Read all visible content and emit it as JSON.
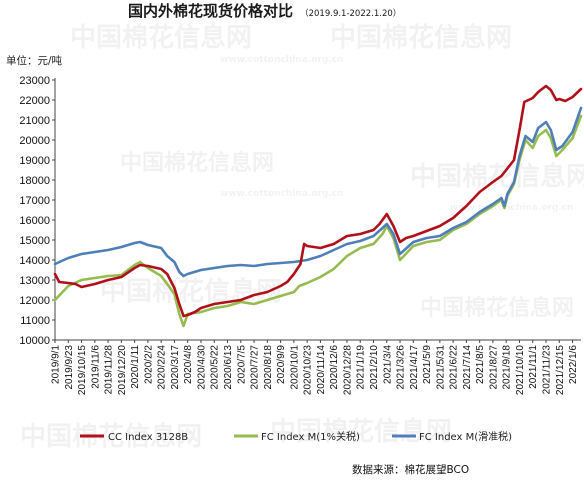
{
  "title": "国内外棉花现货价格对比",
  "subtitle": "（2019.9.1-2022.1.20）",
  "unit_label": "单位：元/吨",
  "source_text": "数据来源：棉花展望BCO",
  "watermark": "中国棉花信息网",
  "watermark_url": "www.cottonchina.org.cn",
  "colors": {
    "cc": "#b01019",
    "fc1": "#96bb50",
    "fcs": "#4f7fb8"
  },
  "chart_data": {
    "type": "line",
    "ylim": [
      10000,
      23000
    ],
    "yticks": [
      10000,
      11000,
      12000,
      13000,
      14000,
      15000,
      16000,
      17000,
      18000,
      19000,
      20000,
      21000,
      22000,
      23000
    ],
    "xlabels": [
      "2019/9/1",
      "2019/9/23",
      "2019/10/15",
      "2019/11/6",
      "2019/11/28",
      "2019/12/20",
      "2020/1/11",
      "2020/2/2",
      "2020/2/24",
      "2020/3/17",
      "2020/4/8",
      "2020/4/30",
      "2020/5/22",
      "2020/6/13",
      "2020/7/5",
      "2020/7/27",
      "2020/8/18",
      "2020/9/9",
      "2020/10/1",
      "2020/10/23",
      "2020/11/14",
      "2020/12/6",
      "2020/12/28",
      "2021/1/19",
      "2021/2/10",
      "2021/3/4",
      "2021/3/26",
      "2021/4/17",
      "2021/5/9",
      "2021/5/31",
      "2021/6/22",
      "2021/7/14",
      "2021/8/5",
      "2021/8/27",
      "2021/9/18",
      "2021/10/10",
      "2021/11/1",
      "2021/11/23",
      "2021/12/15",
      "2022/1/6"
    ],
    "x_start": "2019/9/1",
    "x_end": "2022/1/20",
    "series": [
      {
        "name": "CC Index 3128B",
        "points": [
          [
            "2019/9/1",
            13300
          ],
          [
            "2019/9/8",
            12900
          ],
          [
            "2019/9/23",
            12850
          ],
          [
            "2019/10/5",
            12800
          ],
          [
            "2019/10/15",
            12650
          ],
          [
            "2019/11/6",
            12800
          ],
          [
            "2019/11/28",
            13000
          ],
          [
            "2019/12/20",
            13150
          ],
          [
            "2020/1/11",
            13600
          ],
          [
            "2020/1/20",
            13750
          ],
          [
            "2020/2/2",
            13700
          ],
          [
            "2020/2/24",
            13550
          ],
          [
            "2020/3/5",
            13300
          ],
          [
            "2020/3/17",
            12600
          ],
          [
            "2020/3/25",
            11800
          ],
          [
            "2020/4/1",
            11200
          ],
          [
            "2020/4/8",
            11250
          ],
          [
            "2020/4/20",
            11400
          ],
          [
            "2020/4/30",
            11600
          ],
          [
            "2020/5/22",
            11800
          ],
          [
            "2020/6/13",
            11900
          ],
          [
            "2020/7/5",
            12000
          ],
          [
            "2020/7/27",
            12250
          ],
          [
            "2020/8/18",
            12400
          ],
          [
            "2020/9/9",
            12700
          ],
          [
            "2020/9/20",
            12900
          ],
          [
            "2020/10/1",
            13300
          ],
          [
            "2020/10/12",
            13800
          ],
          [
            "2020/10/18",
            14800
          ],
          [
            "2020/10/23",
            14700
          ],
          [
            "2020/11/14",
            14600
          ],
          [
            "2020/12/6",
            14800
          ],
          [
            "2020/12/28",
            15200
          ],
          [
            "2021/1/19",
            15300
          ],
          [
            "2021/2/10",
            15500
          ],
          [
            "2021/2/20",
            15800
          ],
          [
            "2021/3/4",
            16300
          ],
          [
            "2021/3/15",
            15700
          ],
          [
            "2021/3/26",
            14900
          ],
          [
            "2021/4/5",
            15100
          ],
          [
            "2021/4/17",
            15200
          ],
          [
            "2021/5/9",
            15450
          ],
          [
            "2021/5/31",
            15700
          ],
          [
            "2021/6/22",
            16100
          ],
          [
            "2021/7/14",
            16700
          ],
          [
            "2021/8/5",
            17400
          ],
          [
            "2021/8/27",
            17900
          ],
          [
            "2021/9/10",
            18200
          ],
          [
            "2021/9/18",
            18500
          ],
          [
            "2021/10/1",
            19000
          ],
          [
            "2021/10/10",
            20500
          ],
          [
            "2021/10/18",
            21900
          ],
          [
            "2021/11/1",
            22100
          ],
          [
            "2021/11/10",
            22400
          ],
          [
            "2021/11/23",
            22700
          ],
          [
            "2021/12/1",
            22500
          ],
          [
            "2021/12/10",
            22000
          ],
          [
            "2021/12/15",
            22050
          ],
          [
            "2021/12/25",
            21950
          ],
          [
            "2022/1/6",
            22150
          ],
          [
            "2022/1/20",
            22550
          ]
        ]
      },
      {
        "name": "FC Index M(1%关税)",
        "points": [
          [
            "2019/9/1",
            12000
          ],
          [
            "2019/9/23",
            12700
          ],
          [
            "2019/10/15",
            13000
          ],
          [
            "2019/11/6",
            13100
          ],
          [
            "2019/11/28",
            13200
          ],
          [
            "2019/12/20",
            13250
          ],
          [
            "2020/1/11",
            13750
          ],
          [
            "2020/1/20",
            13900
          ],
          [
            "2020/2/2",
            13600
          ],
          [
            "2020/2/24",
            13200
          ],
          [
            "2020/3/5",
            12800
          ],
          [
            "2020/3/17",
            12300
          ],
          [
            "2020/3/25",
            11300
          ],
          [
            "2020/4/1",
            10700
          ],
          [
            "2020/4/8",
            11300
          ],
          [
            "2020/4/30",
            11400
          ],
          [
            "2020/5/22",
            11600
          ],
          [
            "2020/6/13",
            11700
          ],
          [
            "2020/7/5",
            11900
          ],
          [
            "2020/7/27",
            11800
          ],
          [
            "2020/8/18",
            12000
          ],
          [
            "2020/9/9",
            12200
          ],
          [
            "2020/10/1",
            12400
          ],
          [
            "2020/10/10",
            12700
          ],
          [
            "2020/10/23",
            12850
          ],
          [
            "2020/11/14",
            13150
          ],
          [
            "2020/12/6",
            13550
          ],
          [
            "2020/12/28",
            14200
          ],
          [
            "2021/1/19",
            14600
          ],
          [
            "2021/2/10",
            14800
          ],
          [
            "2021/2/25",
            15300
          ],
          [
            "2021/3/4",
            15700
          ],
          [
            "2021/3/15",
            15100
          ],
          [
            "2021/3/26",
            14000
          ],
          [
            "2021/4/17",
            14700
          ],
          [
            "2021/5/9",
            14900
          ],
          [
            "2021/5/31",
            15000
          ],
          [
            "2021/6/22",
            15500
          ],
          [
            "2021/7/14",
            15800
          ],
          [
            "2021/8/5",
            16300
          ],
          [
            "2021/8/27",
            16700
          ],
          [
            "2021/9/10",
            17000
          ],
          [
            "2021/9/15",
            16600
          ],
          [
            "2021/9/20",
            17200
          ],
          [
            "2021/10/1",
            17800
          ],
          [
            "2021/10/10",
            19000
          ],
          [
            "2021/10/20",
            20000
          ],
          [
            "2021/11/1",
            19600
          ],
          [
            "2021/11/10",
            20200
          ],
          [
            "2021/11/23",
            20500
          ],
          [
            "2021/12/1",
            20100
          ],
          [
            "2021/12/10",
            19200
          ],
          [
            "2021/12/20",
            19500
          ],
          [
            "2022/1/6",
            20100
          ],
          [
            "2022/1/20",
            21200
          ]
        ]
      },
      {
        "name": "FC Index M(滑准税)",
        "points": [
          [
            "2019/9/1",
            13800
          ],
          [
            "2019/9/23",
            14100
          ],
          [
            "2019/10/15",
            14300
          ],
          [
            "2019/11/6",
            14400
          ],
          [
            "2019/11/28",
            14500
          ],
          [
            "2019/12/20",
            14650
          ],
          [
            "2020/1/11",
            14850
          ],
          [
            "2020/1/20",
            14900
          ],
          [
            "2020/2/2",
            14750
          ],
          [
            "2020/2/24",
            14600
          ],
          [
            "2020/3/5",
            14200
          ],
          [
            "2020/3/17",
            13900
          ],
          [
            "2020/3/25",
            13400
          ],
          [
            "2020/4/1",
            13200
          ],
          [
            "2020/4/8",
            13300
          ],
          [
            "2020/4/30",
            13500
          ],
          [
            "2020/5/22",
            13600
          ],
          [
            "2020/6/13",
            13700
          ],
          [
            "2020/7/5",
            13750
          ],
          [
            "2020/7/27",
            13700
          ],
          [
            "2020/8/18",
            13800
          ],
          [
            "2020/9/9",
            13850
          ],
          [
            "2020/10/1",
            13900
          ],
          [
            "2020/10/23",
            14000
          ],
          [
            "2020/11/14",
            14200
          ],
          [
            "2020/12/6",
            14500
          ],
          [
            "2020/12/28",
            14800
          ],
          [
            "2021/1/19",
            14950
          ],
          [
            "2021/2/10",
            15200
          ],
          [
            "2021/2/25",
            15600
          ],
          [
            "2021/3/4",
            15800
          ],
          [
            "2021/3/15",
            15300
          ],
          [
            "2021/3/26",
            14300
          ],
          [
            "2021/4/17",
            14900
          ],
          [
            "2021/5/9",
            15100
          ],
          [
            "2021/5/31",
            15200
          ],
          [
            "2021/6/22",
            15600
          ],
          [
            "2021/7/14",
            15900
          ],
          [
            "2021/8/5",
            16400
          ],
          [
            "2021/8/27",
            16800
          ],
          [
            "2021/9/10",
            17100
          ],
          [
            "2021/9/15",
            16700
          ],
          [
            "2021/9/20",
            17300
          ],
          [
            "2021/10/1",
            17900
          ],
          [
            "2021/10/10",
            19200
          ],
          [
            "2021/10/20",
            20200
          ],
          [
            "2021/11/1",
            19900
          ],
          [
            "2021/11/10",
            20600
          ],
          [
            "2021/11/23",
            20900
          ],
          [
            "2021/12/1",
            20500
          ],
          [
            "2021/12/10",
            19500
          ],
          [
            "2021/12/20",
            19700
          ],
          [
            "2022/1/6",
            20400
          ],
          [
            "2022/1/20",
            21600
          ]
        ]
      }
    ]
  }
}
